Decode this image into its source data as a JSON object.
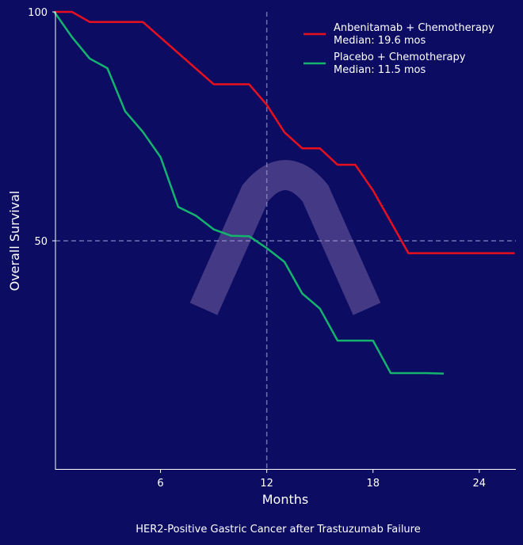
{
  "chart_data": {
    "type": "line",
    "title": "",
    "footer": "HER2-Positive Gastric Cancer after Trastuzumab Failure",
    "xlabel": "Months",
    "ylabel": "Overall Survival",
    "xlim": [
      0,
      26
    ],
    "ylim": [
      0,
      100
    ],
    "xticks": [
      6,
      12,
      18,
      24
    ],
    "yticks": [
      50,
      100
    ],
    "grid": false,
    "reference_lines": [
      {
        "axis": "x",
        "value": 12,
        "style": "dashed"
      },
      {
        "axis": "y",
        "value": 50,
        "style": "dashed"
      }
    ],
    "legend_placement": "top-right",
    "background_color": "#0b0c62",
    "series": [
      {
        "name": "Anbenitamab + Chemotherapy",
        "label2": "Median: 19.6 mos",
        "color": "#e8101e",
        "x": [
          0,
          1,
          2,
          5,
          9,
          11,
          12,
          13,
          14,
          15,
          16,
          17,
          18,
          20,
          26
        ],
        "y": [
          100,
          100,
          97.8,
          97.8,
          84.2,
          84.2,
          79.7,
          73.7,
          70.2,
          70.2,
          66.6,
          66.6,
          61,
          47.3,
          47.3
        ]
      },
      {
        "name": "Placebo + Chemotherapy",
        "label2": "Median: 11.5 mos",
        "color": "#14b46e",
        "x": [
          0,
          1,
          2,
          3,
          4,
          5,
          6,
          7,
          8,
          9,
          10,
          11,
          12,
          13,
          14,
          15,
          16,
          18,
          19,
          21,
          22
        ],
        "y": [
          100,
          94.5,
          89.8,
          87.7,
          78.3,
          73.8,
          68.3,
          57.4,
          55.5,
          52.5,
          51.1,
          51,
          48.4,
          45.4,
          38.5,
          35.2,
          28.2,
          28.2,
          21.1,
          21.1,
          21
        ]
      }
    ],
    "watermark": "arch-logo"
  }
}
